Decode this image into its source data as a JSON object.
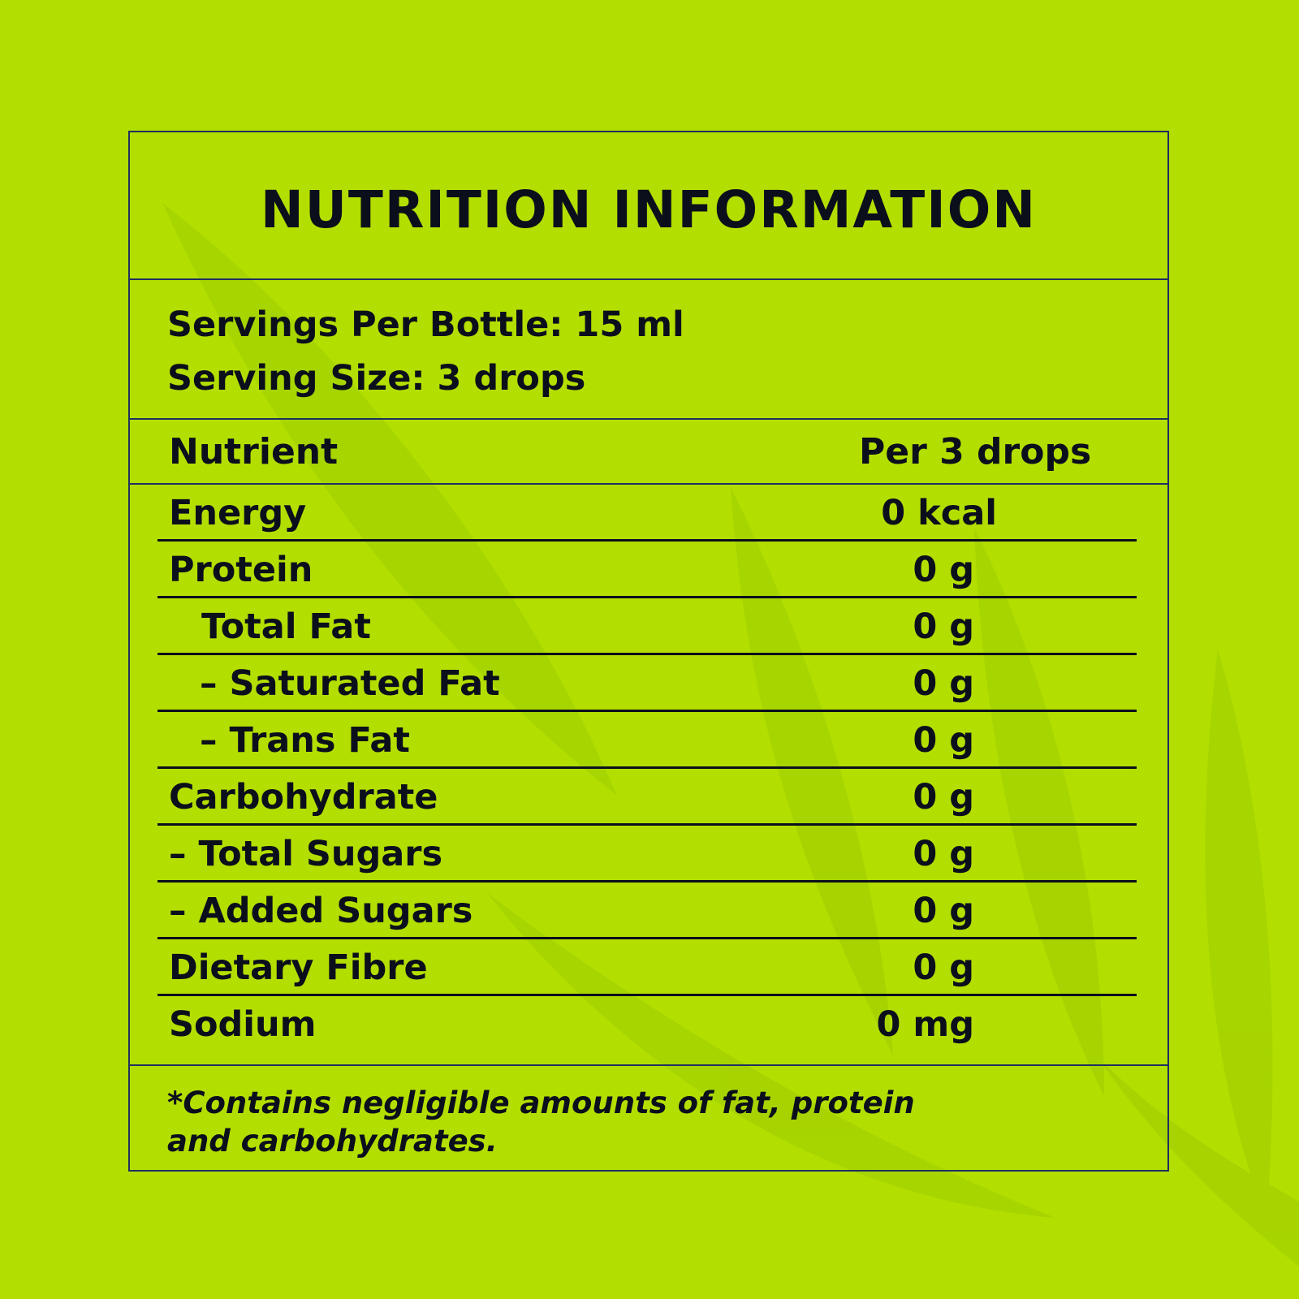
{
  "title": "NUTRITION INFORMATION",
  "serving": {
    "servings_per_bottle": "Servings Per Bottle: 15 ml",
    "serving_size": "Serving Size: 3 drops"
  },
  "table": {
    "header": {
      "nutrient": "Nutrient",
      "per": "Per 3 drops"
    },
    "rows": [
      {
        "name": "Energy",
        "value": "0 kcal"
      },
      {
        "name": "Protein",
        "value": "0 g"
      },
      {
        "name": "Total Fat",
        "value": "0 g"
      },
      {
        "name": "– Saturated Fat",
        "value": "0 g"
      },
      {
        "name": "– Trans Fat",
        "value": "0 g"
      },
      {
        "name": "Carbohydrate",
        "value": "0 g"
      },
      {
        "name": "– Total Sugars",
        "value": "0 g"
      },
      {
        "name": "– Added Sugars",
        "value": "0 g"
      },
      {
        "name": "Dietary Fibre",
        "value": "0 g"
      },
      {
        "name": "Sodium",
        "value": "0 mg"
      }
    ]
  },
  "footnote": "*Contains negligible amounts of fat, protein and carbohydrates.",
  "colors": {
    "background": "#b2df00",
    "text": "#0b0f1c",
    "border": "#1f2f5f"
  }
}
